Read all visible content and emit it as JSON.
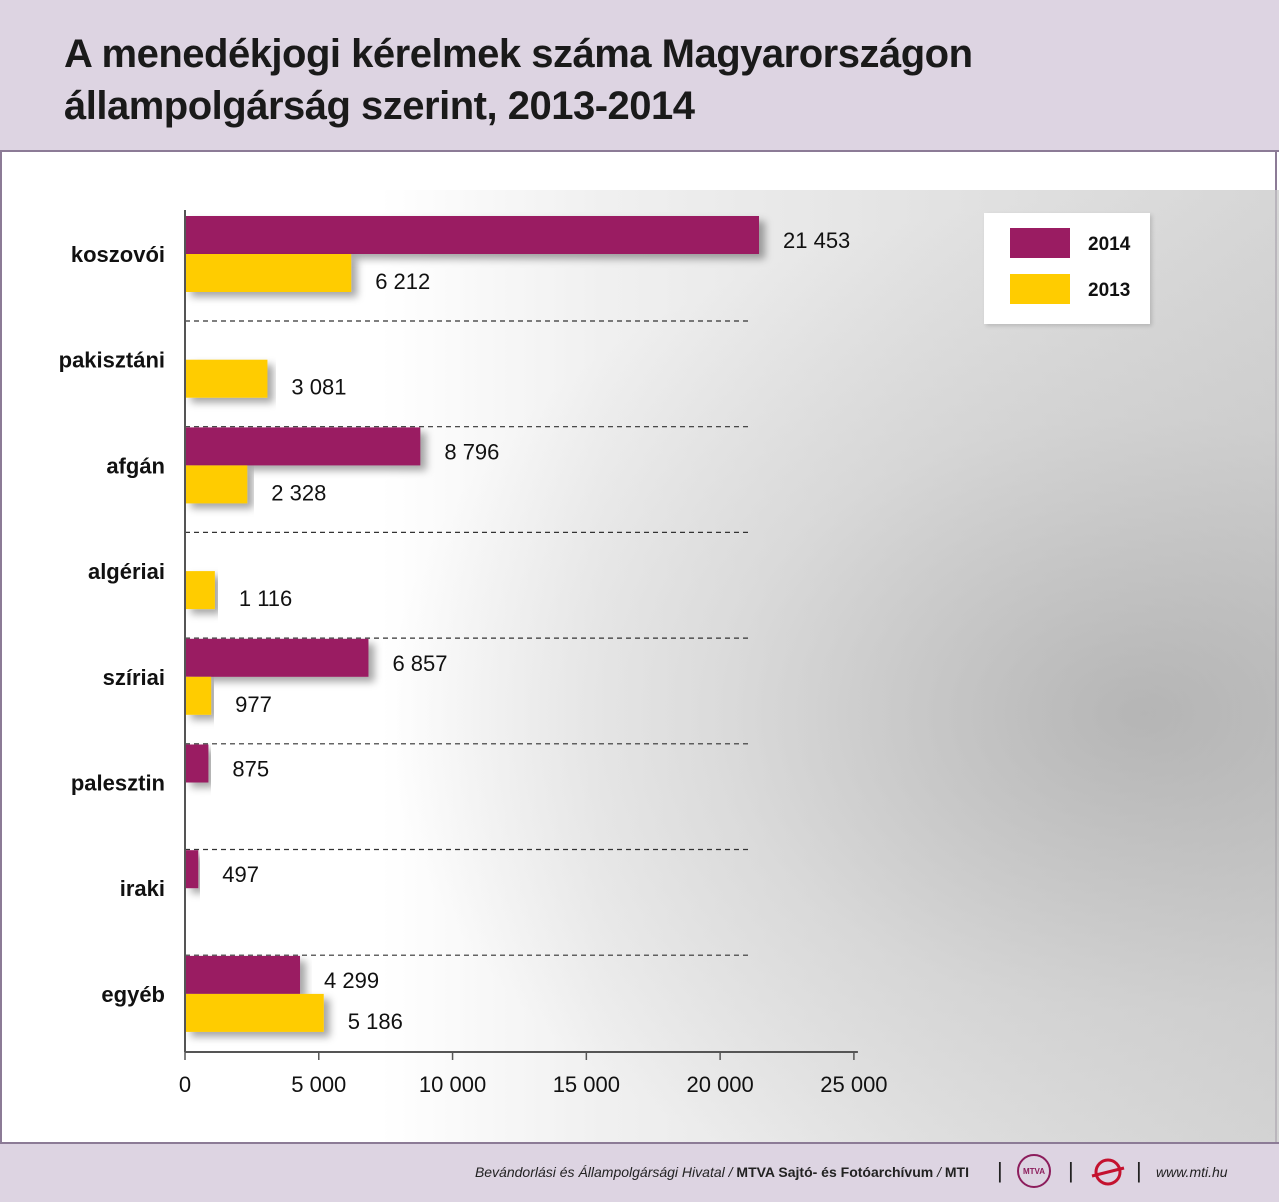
{
  "header": {
    "title_line1": "A menedékjogi kérelmek száma Magyarországon",
    "title_line2": "állampolgárság szerint, 2013-2014"
  },
  "footer": {
    "source": "Bevándorlási és Állampolgársági Hivatal",
    "agency": "MTVA Sajtó- és Fotóarchívum",
    "org": "MTI",
    "logo1_text": "MTVA",
    "url": "www.mti.hu"
  },
  "colors": {
    "series_2014": "#9a1c62",
    "series_2013": "#ffcc00",
    "header_bg": "#ddd4e2"
  },
  "chart_data": {
    "type": "bar",
    "orientation": "horizontal",
    "title": "A menedékjogi kérelmek száma Magyarországon állampolgárság szerint, 2013-2014",
    "categories": [
      "koszovói",
      "pakisztáni",
      "afgán",
      "algériai",
      "szíriai",
      "palesztin",
      "iraki",
      "egyéb"
    ],
    "series": [
      {
        "name": "2014",
        "values": [
          21453,
          null,
          8796,
          null,
          6857,
          875,
          497,
          4299
        ],
        "labels": [
          "21 453",
          "",
          "8 796",
          "",
          "6 857",
          "875",
          "497",
          "4 299"
        ]
      },
      {
        "name": "2013",
        "values": [
          6212,
          3081,
          2328,
          1116,
          977,
          null,
          null,
          5186
        ],
        "labels": [
          "6 212",
          "3 081",
          "2 328",
          "1 116",
          "977",
          "",
          "",
          "5 186"
        ]
      }
    ],
    "xlim": [
      0,
      25000
    ],
    "xticks": [
      0,
      5000,
      10000,
      15000,
      20000,
      25000
    ],
    "xtick_labels": [
      "0",
      "5 000",
      "10 000",
      "15 000",
      "20 000",
      "25 000"
    ],
    "legend": {
      "position": "top-right",
      "entries": [
        "2014",
        "2013"
      ]
    },
    "grid": false
  }
}
